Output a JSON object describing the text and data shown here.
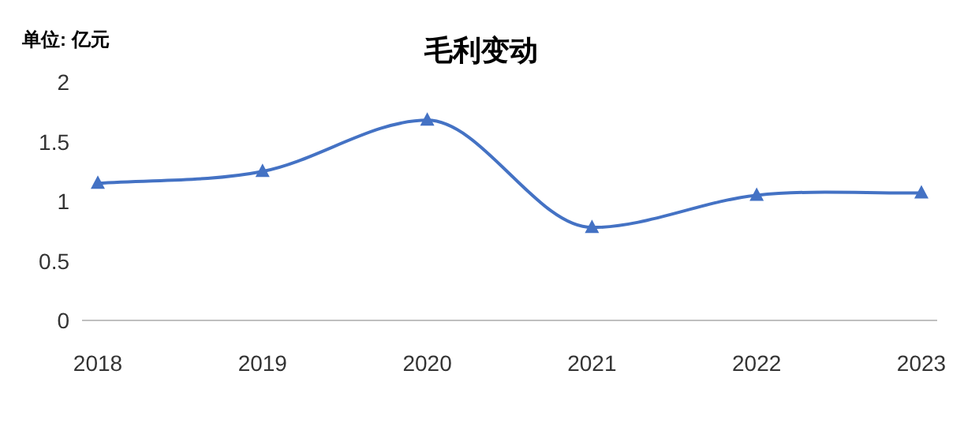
{
  "chart_data": {
    "type": "line",
    "title": "毛利变动",
    "ylabel": "单位: 亿元",
    "categories": [
      "2018",
      "2019",
      "2020",
      "2021",
      "2022",
      "2023"
    ],
    "series": [
      {
        "color": "#4472c4",
        "values": [
          1.15,
          1.25,
          1.68,
          0.78,
          1.05,
          1.07
        ]
      }
    ],
    "ylim": [
      0,
      2
    ],
    "yticks": [
      0,
      0.5,
      1,
      1.5,
      2
    ],
    "marker": "triangle"
  }
}
